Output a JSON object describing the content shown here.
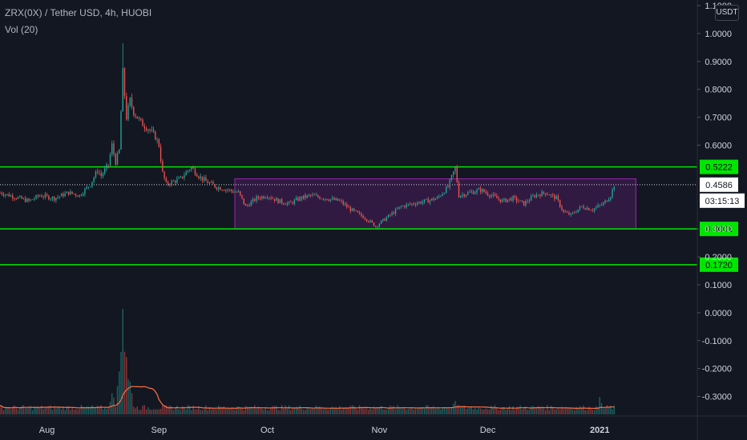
{
  "header": {
    "title": "ZRX(0X) / Tether USD, 4h, HUOBI",
    "volume_label": "Vol (20)"
  },
  "currency_button": "USDT",
  "colors": {
    "background": "#131722",
    "up": "#26a69a",
    "down": "#ef5350",
    "level_line": "#00e600",
    "range_box": "#9c27b0",
    "volume_ma": "#ff7043",
    "axis_text": "#d1d4dc"
  },
  "chart_data": {
    "type": "candlestick",
    "title": "ZRX(0X) / Tether USD, 4h, HUOBI",
    "y_ticks": [
      "1.1000",
      "1.0000",
      "0.9000",
      "0.8000",
      "0.7000",
      "0.6000",
      "0.3000",
      "0.2000",
      "0.1000",
      "0.0000",
      "-0.1000",
      "-0.2000",
      "-0.3000"
    ],
    "y_tick_values": [
      1.1,
      1.0,
      0.9,
      0.8,
      0.7,
      0.6,
      0.3,
      0.2,
      0.1,
      0.0,
      -0.1,
      -0.2,
      -0.3
    ],
    "ylim": [
      -0.37,
      1.12
    ],
    "x_ticks": [
      "Aug",
      "Sep",
      "Oct",
      "Nov",
      "Dec",
      "2021"
    ],
    "x_tick_days": [
      0,
      31,
      61,
      92,
      122,
      153
    ],
    "xlim_days": [
      -13,
      180
    ],
    "horizontal_levels": [
      {
        "label": "0.5222",
        "value": 0.5222
      },
      {
        "label": "0.3001",
        "value": 0.3001
      },
      {
        "label": "0.1720",
        "value": 0.172
      }
    ],
    "current_price": {
      "label": "0.4586",
      "value": 0.4586,
      "countdown": "03:15:13"
    },
    "range_box": {
      "x0_day": 52,
      "x1_day": 163,
      "y_low": 0.3001,
      "y_high": 0.4795
    },
    "price_path": [
      [
        -13,
        0.43
      ],
      [
        -9,
        0.415
      ],
      [
        -5,
        0.4
      ],
      [
        -2,
        0.42
      ],
      [
        2,
        0.41
      ],
      [
        6,
        0.43
      ],
      [
        9,
        0.42
      ],
      [
        12,
        0.46
      ],
      [
        14,
        0.51
      ],
      [
        15,
        0.49
      ],
      [
        17,
        0.53
      ],
      [
        18,
        0.6
      ],
      [
        19,
        0.54
      ],
      [
        20,
        0.58
      ],
      [
        21,
        0.86
      ],
      [
        22,
        0.7
      ],
      [
        23,
        0.76
      ],
      [
        24,
        0.72
      ],
      [
        26,
        0.68
      ],
      [
        28,
        0.66
      ],
      [
        30,
        0.63
      ],
      [
        31,
        0.6
      ],
      [
        32,
        0.5
      ],
      [
        33,
        0.46
      ],
      [
        35,
        0.47
      ],
      [
        37,
        0.48
      ],
      [
        39,
        0.51
      ],
      [
        40,
        0.52
      ],
      [
        42,
        0.49
      ],
      [
        44,
        0.47
      ],
      [
        47,
        0.45
      ],
      [
        50,
        0.44
      ],
      [
        53,
        0.43
      ],
      [
        55,
        0.38
      ],
      [
        58,
        0.41
      ],
      [
        61,
        0.42
      ],
      [
        64,
        0.4
      ],
      [
        67,
        0.39
      ],
      [
        70,
        0.41
      ],
      [
        73,
        0.42
      ],
      [
        77,
        0.41
      ],
      [
        81,
        0.4
      ],
      [
        84,
        0.37
      ],
      [
        88,
        0.34
      ],
      [
        91,
        0.31
      ],
      [
        94,
        0.34
      ],
      [
        98,
        0.38
      ],
      [
        101,
        0.39
      ],
      [
        105,
        0.4
      ],
      [
        108,
        0.41
      ],
      [
        111,
        0.45
      ],
      [
        113,
        0.52
      ],
      [
        114,
        0.42
      ],
      [
        117,
        0.43
      ],
      [
        120,
        0.44
      ],
      [
        123,
        0.42
      ],
      [
        126,
        0.4
      ],
      [
        129,
        0.41
      ],
      [
        132,
        0.39
      ],
      [
        135,
        0.42
      ],
      [
        138,
        0.43
      ],
      [
        141,
        0.41
      ],
      [
        143,
        0.36
      ],
      [
        145,
        0.35
      ],
      [
        148,
        0.38
      ],
      [
        151,
        0.37
      ],
      [
        154,
        0.39
      ],
      [
        156,
        0.42
      ],
      [
        157,
        0.4586
      ]
    ],
    "volume_spikes": [
      [
        21,
        1.0
      ],
      [
        22,
        0.55
      ],
      [
        20,
        0.4
      ],
      [
        23,
        0.3
      ],
      [
        18,
        0.2
      ],
      [
        113,
        0.1
      ],
      [
        153,
        0.12
      ]
    ]
  }
}
